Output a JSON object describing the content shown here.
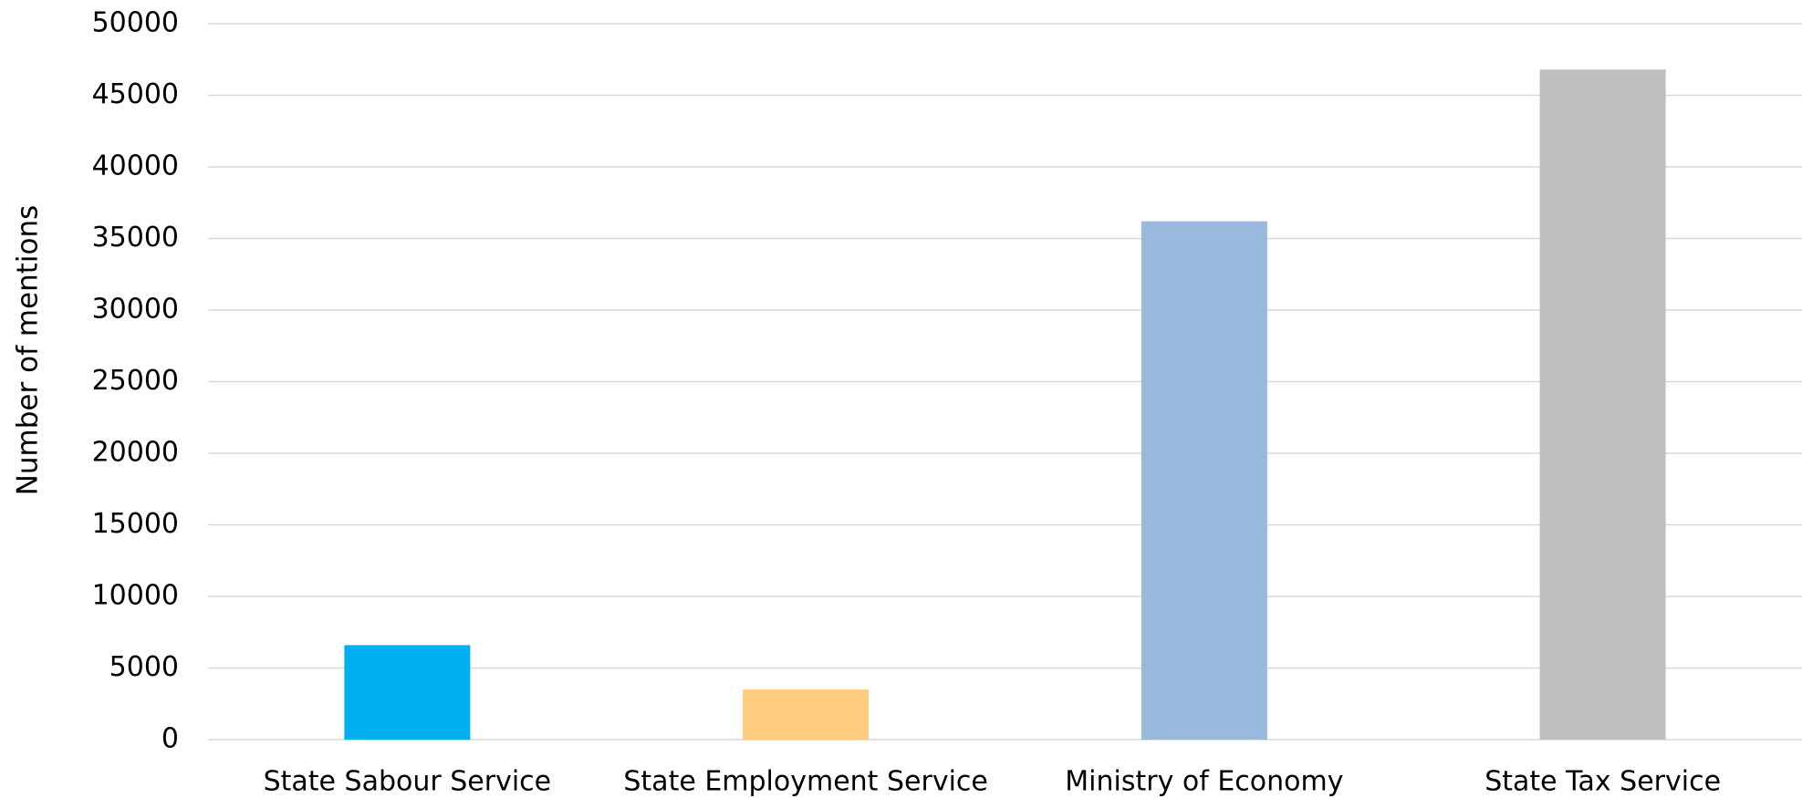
{
  "chart_data": {
    "type": "bar",
    "title": "",
    "xlabel": "",
    "ylabel": "Number of mentions",
    "ylim": [
      0,
      50000
    ],
    "y_ticks": [
      0,
      5000,
      10000,
      15000,
      20000,
      25000,
      30000,
      35000,
      40000,
      45000,
      50000
    ],
    "grid": true,
    "legend": "none",
    "categories": [
      "State Sabour Service",
      "State Employment Service",
      "Ministry of Economy",
      "State Tax Service"
    ],
    "values": [
      6600,
      3500,
      36200,
      46800
    ],
    "colors": [
      "#00b0f0",
      "#ffcc80",
      "#98b9dc",
      "#bfbfbf"
    ]
  }
}
